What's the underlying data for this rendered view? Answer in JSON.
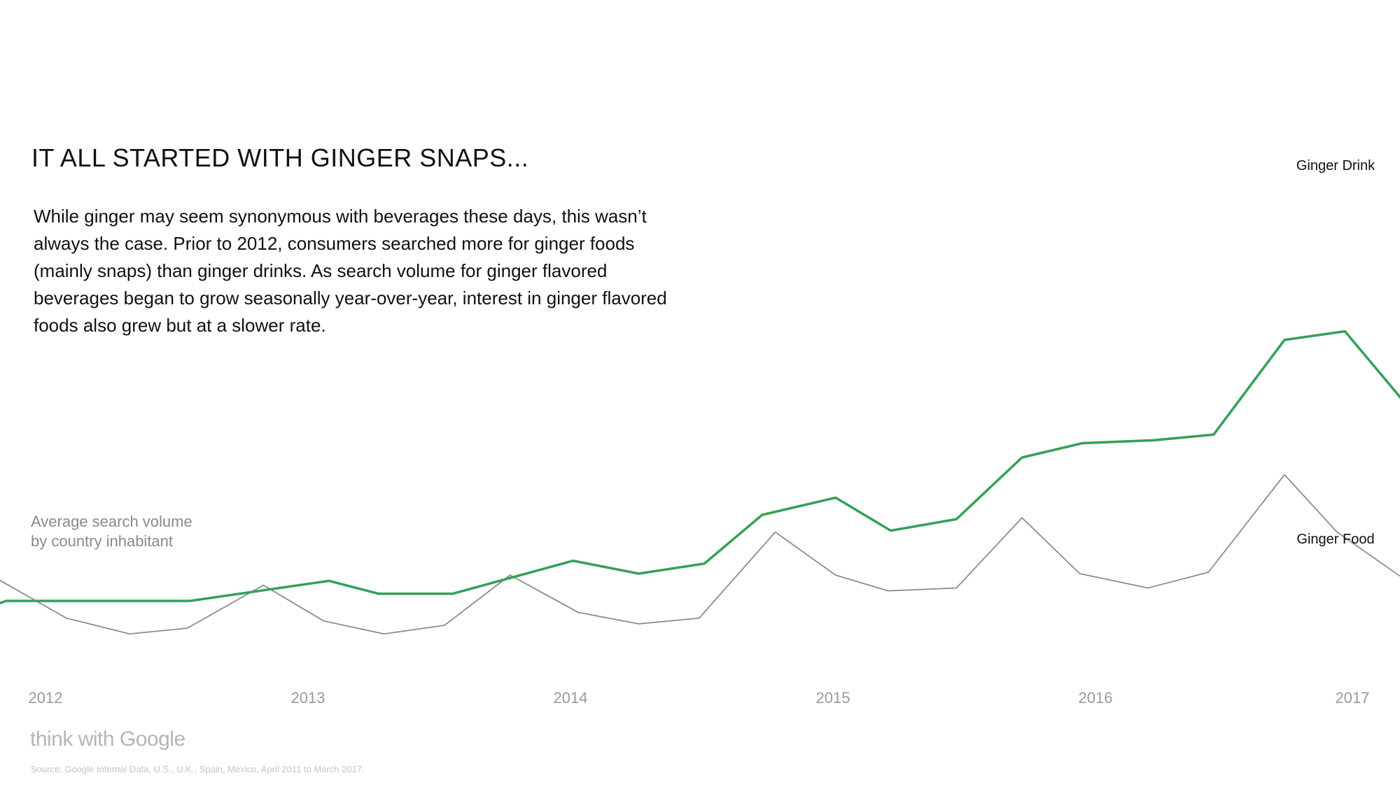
{
  "header": {
    "title": "IT ALL STARTED WITH GINGER SNAPS...",
    "description": "While ginger may seem synonymous with beverages these days, this wasn’t always the case. Prior to 2012, consumers searched more for ginger foods (mainly snaps) than ginger drinks. As search volume for ginger flavored beverages began to grow seasonally year-over-year, interest in ginger flavored foods also grew but at a slower rate."
  },
  "footer": {
    "brand": "think with Google",
    "source": "Source: Google Internal Data, U.S., U.K., Spain, Mexico, April 2011 to March 2017."
  },
  "colors": {
    "ginger_drink": "#34a058",
    "ginger_food": "#8c8c8c",
    "axis_text": "#9a9a9a"
  },
  "chart_data": {
    "type": "line",
    "title": "",
    "xlabel": "",
    "ylabel_lines": [
      "Average search volume",
      "by country inhabitant"
    ],
    "x_ticks": [
      2012,
      2013,
      2014,
      2015,
      2016,
      2017
    ],
    "x_range": [
      2011.82,
      2017.17
    ],
    "y_range": [
      0,
      100
    ],
    "grid": false,
    "legend": "inline labels at right end of each line",
    "series": [
      {
        "name": "Ginger Drink",
        "points": [
          [
            2011.82,
            9
          ],
          [
            2011.85,
            10
          ],
          [
            2012.55,
            10
          ],
          [
            2013.08,
            17
          ],
          [
            2013.27,
            12.5
          ],
          [
            2013.55,
            12.5
          ],
          [
            2014.01,
            24
          ],
          [
            2014.26,
            19.5
          ],
          [
            2014.51,
            23
          ],
          [
            2014.73,
            40
          ],
          [
            2015.01,
            46
          ],
          [
            2015.22,
            34.5
          ],
          [
            2015.47,
            38.5
          ],
          [
            2015.72,
            60
          ],
          [
            2015.95,
            65
          ],
          [
            2016.22,
            66
          ],
          [
            2016.45,
            68
          ],
          [
            2016.72,
            101
          ],
          [
            2016.95,
            104
          ],
          [
            2017.17,
            80
          ]
        ]
      },
      {
        "name": "Ginger Food",
        "points": [
          [
            2011.82,
            17.5
          ],
          [
            2012.08,
            4
          ],
          [
            2012.32,
            -1.5
          ],
          [
            2012.54,
            0.5
          ],
          [
            2012.83,
            15.5
          ],
          [
            2013.06,
            3
          ],
          [
            2013.29,
            -1.5
          ],
          [
            2013.52,
            1.5
          ],
          [
            2013.77,
            19
          ],
          [
            2014.03,
            6
          ],
          [
            2014.26,
            2
          ],
          [
            2014.49,
            4
          ],
          [
            2014.78,
            34
          ],
          [
            2015.01,
            19
          ],
          [
            2015.21,
            13.5
          ],
          [
            2015.47,
            14.5
          ],
          [
            2015.72,
            39
          ],
          [
            2015.94,
            19.5
          ],
          [
            2016.2,
            14.5
          ],
          [
            2016.43,
            20
          ],
          [
            2016.72,
            54
          ],
          [
            2016.92,
            34
          ],
          [
            2017.17,
            18
          ]
        ]
      }
    ]
  }
}
